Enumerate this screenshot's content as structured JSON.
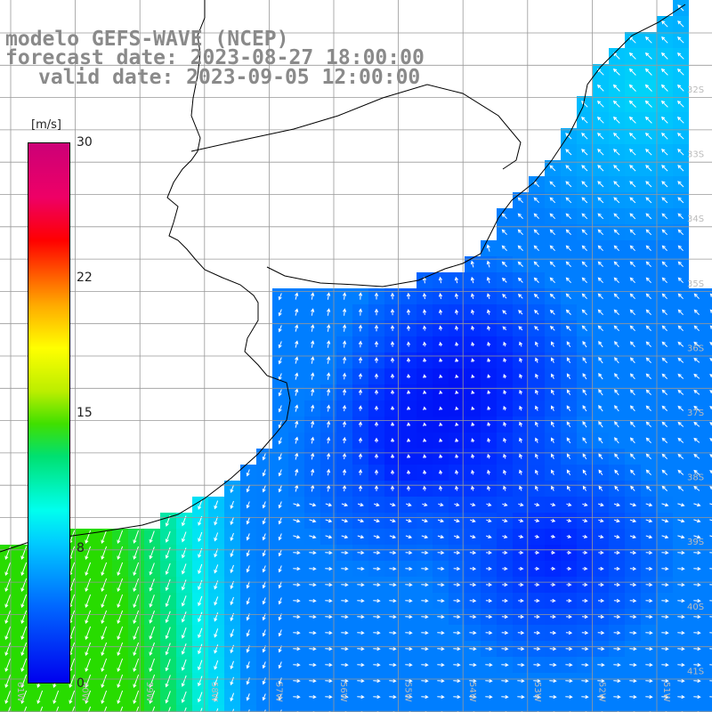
{
  "header": {
    "model": "modelo GEFS-WAVE (NCEP)",
    "forecast": "forecast date: 2023-08-27 18:00:00",
    "valid": "valid date: 2023-09-05 12:00:00"
  },
  "colorbar": {
    "unit": "[m/s]",
    "ticks": [
      "30",
      "22",
      "15",
      "8",
      "0"
    ],
    "colors": [
      "#0000ee",
      "#0066ff",
      "#00ccff",
      "#00ffee",
      "#00e070",
      "#ffff00",
      "#ff0000",
      "#cc0077"
    ]
  },
  "axes": {
    "lat_labels": [
      "32S",
      "33S",
      "34S",
      "35S",
      "36S",
      "37S",
      "38S",
      "39S",
      "40S",
      "41S"
    ],
    "lon_labels": [
      "61W",
      "60W",
      "59W",
      "58W",
      "57W",
      "56W",
      "55W",
      "54W",
      "53W",
      "52W",
      "51W"
    ]
  },
  "map_colors": {
    "land": "#ffffff",
    "grid": "#999999",
    "coast": "#000000",
    "arrow": "#ffffff"
  }
}
